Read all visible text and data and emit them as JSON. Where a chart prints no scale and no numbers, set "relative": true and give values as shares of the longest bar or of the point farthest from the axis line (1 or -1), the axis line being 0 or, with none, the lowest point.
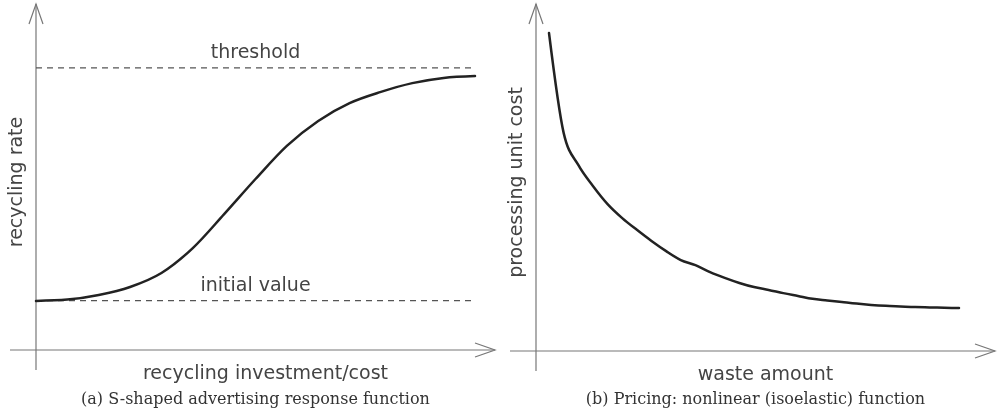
{
  "chart_data": [
    {
      "type": "line",
      "title": "(a) S-shaped advertising response function",
      "xlabel": "recycling investment/cost",
      "ylabel": "recycling rate",
      "relative": true,
      "categories": [
        null,
        null,
        null,
        null,
        null,
        null,
        null,
        null,
        null,
        null,
        null,
        null,
        null,
        null,
        null
      ],
      "series": [
        {
          "color": "#222222",
          "values": [
            0.179,
            0.184,
            0.201,
            0.23,
            0.281,
            0.372,
            0.496,
            0.624,
            0.745,
            0.836,
            0.901,
            0.942,
            0.974,
            0.993,
            1
          ]
        }
      ],
      "ref_lines": [
        {
          "axis": "y",
          "value": 1.03,
          "label": "threshold",
          "color": "#555555",
          "line_style": "dashed"
        },
        {
          "axis": "y",
          "value": 0.18,
          "label": "initial value",
          "color": "#555555",
          "line_style": "dashed"
        }
      ]
    },
    {
      "type": "line",
      "title": "(b) Pricing: nonlinear (isoelastic) function",
      "xlabel": "waste amount",
      "ylabel": "processing unit cost",
      "relative": true,
      "categories": [
        null,
        null,
        null,
        null,
        null,
        null,
        null,
        null,
        null,
        null,
        null,
        null,
        null,
        null,
        null,
        null,
        null,
        null,
        null,
        null,
        null,
        null,
        null,
        null,
        null,
        null,
        null,
        null,
        null
      ],
      "series": [
        {
          "color": "#222222",
          "values": [
            1,
            0.686,
            0.585,
            0.519,
            0.462,
            0.418,
            0.381,
            0.346,
            0.314,
            0.286,
            0.27,
            0.248,
            0.23,
            0.214,
            0.201,
            0.192,
            0.182,
            0.173,
            0.164,
            0.159,
            0.154,
            0.149,
            0.145,
            0.142,
            0.14,
            0.138,
            0.137,
            0.136,
            0.135
          ]
        }
      ]
    }
  ]
}
